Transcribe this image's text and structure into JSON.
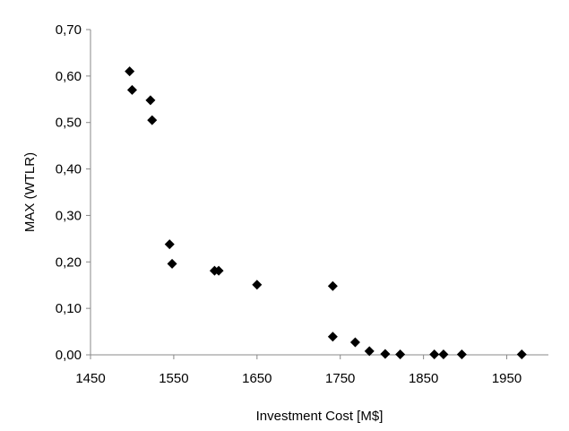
{
  "chart_data": {
    "type": "scatter",
    "title": "",
    "xlabel": "Investment Cost [M$]",
    "ylabel": "MAX (WTLR)",
    "xlim": [
      1450,
      2000
    ],
    "ylim": [
      0,
      0.7
    ],
    "x_ticks": [
      1450,
      1550,
      1650,
      1750,
      1850,
      1950
    ],
    "x_tick_labels": [
      "1450",
      "1550",
      "1650",
      "1750",
      "1850",
      "1950"
    ],
    "y_ticks": [
      0,
      0.1,
      0.2,
      0.3,
      0.4,
      0.5,
      0.6,
      0.7
    ],
    "y_tick_labels": [
      "0,00",
      "0,10",
      "0,20",
      "0,30",
      "0,40",
      "0,50",
      "0,60",
      "0,70"
    ],
    "grid": false,
    "legend": "none",
    "marker": "diamond",
    "marker_color": "#000000",
    "series": [
      {
        "points": [
          {
            "x": 1497,
            "y": 0.61
          },
          {
            "x": 1500,
            "y": 0.57
          },
          {
            "x": 1522,
            "y": 0.548
          },
          {
            "x": 1524,
            "y": 0.505
          },
          {
            "x": 1545,
            "y": 0.238
          },
          {
            "x": 1548,
            "y": 0.196
          },
          {
            "x": 1599,
            "y": 0.181
          },
          {
            "x": 1604,
            "y": 0.181
          },
          {
            "x": 1650,
            "y": 0.151
          },
          {
            "x": 1741,
            "y": 0.148
          },
          {
            "x": 1741,
            "y": 0.039
          },
          {
            "x": 1768,
            "y": 0.027
          },
          {
            "x": 1785,
            "y": 0.008
          },
          {
            "x": 1804,
            "y": 0.002
          },
          {
            "x": 1822,
            "y": 0.001
          },
          {
            "x": 1863,
            "y": 0.001
          },
          {
            "x": 1874,
            "y": 0.001
          },
          {
            "x": 1896,
            "y": 0.001
          },
          {
            "x": 1968,
            "y": 0.001
          }
        ]
      }
    ]
  }
}
